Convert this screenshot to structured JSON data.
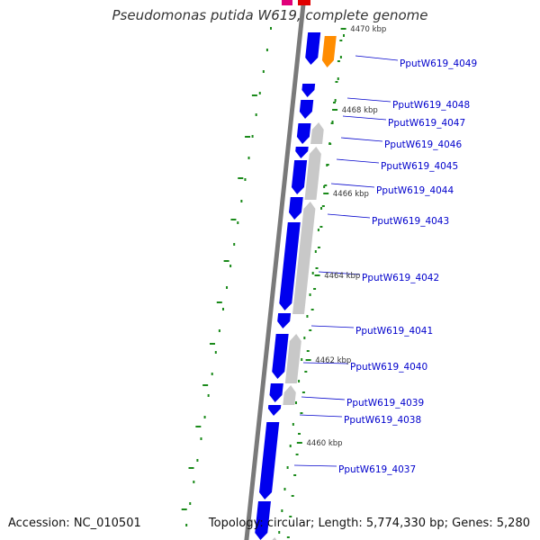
{
  "title": "Pseudomonas putida W619, complete genome",
  "accession": "Accession: NC_010501",
  "topology": "Topology: circular; Length: 5,774,330 bp; Genes: 5,280",
  "colors": {
    "forward_gene": "#0000ee",
    "reverse_gene": "#c8c8c8",
    "highlight_gene": "#ff8c00",
    "top_partial_genes": [
      "#e0007a",
      "#e00000"
    ],
    "backbone": "#7a7a7a",
    "tick": "#1a8a1a",
    "label": "#0000cc"
  },
  "kbp_ticks": [
    "4470 kbp",
    "4468 kbp",
    "4466 kbp",
    "4464 kbp",
    "4462 kbp",
    "4460 kbp"
  ],
  "gene_labels": [
    "PputW619_4049",
    "PputW619_4048",
    "PputW619_4047",
    "PputW619_4046",
    "PputW619_4045",
    "PputW619_4044",
    "PputW619_4043",
    "PputW619_4042",
    "PputW619_4041",
    "PputW619_4040",
    "PputW619_4039",
    "PputW619_4038",
    "PputW619_4037"
  ]
}
